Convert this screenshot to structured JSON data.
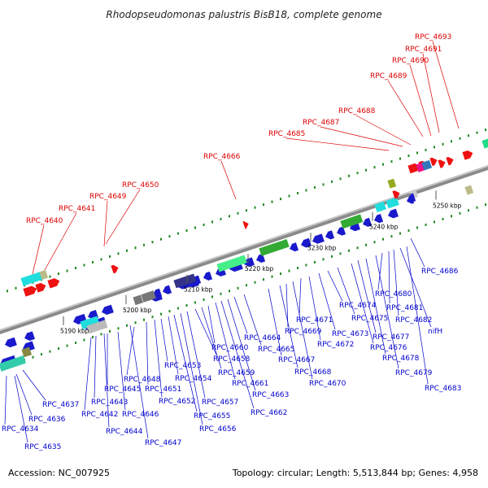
{
  "title": "Rhodopseudomonas palustris BisB18, complete genome",
  "footer": {
    "accession": "Accession: NC_007925",
    "stats": "Topology: circular; Length: 5,513,844 bp; Genes: 4,958"
  },
  "kbp_ticks": [
    "5190 kbp",
    "5200 kbp",
    "5210 kbp",
    "5220 kbp",
    "5230 kbp",
    "5240 kbp",
    "5250 kbp"
  ],
  "colors": {
    "forward_labels": "#dd0000",
    "reverse_labels": "#0000cc",
    "genome_line": "#888888",
    "tick_marks": "#228822"
  },
  "forward_labels": [
    "RPC_4640",
    "RPC_4641",
    "RPC_4649",
    "RPC_4650",
    "RPC_4666",
    "RPC_4685",
    "RPC_4687",
    "RPC_4688",
    "RPC_4689",
    "RPC_4690",
    "RPC_4691",
    "RPC_4693"
  ],
  "reverse_labels": [
    "RPC_4634",
    "RPC_4635",
    "RPC_4636",
    "RPC_4637",
    "RPC_4642",
    "RPC_4643",
    "RPC_4644",
    "RPC_4645",
    "RPC_4646",
    "RPC_4647",
    "RPC_4648",
    "RPC_4651",
    "RPC_4652",
    "RPC_4653",
    "RPC_4654",
    "RPC_4655",
    "RPC_4656",
    "RPC_4657",
    "RPC_4658",
    "RPC_4659",
    "RPC_4660",
    "RPC_4661",
    "RPC_4662",
    "RPC_4663",
    "RPC_4664",
    "RPC_4665",
    "RPC_4667",
    "RPC_4668",
    "RPC_4669",
    "RPC_4670",
    "RPC_4671",
    "RPC_4672",
    "RPC_4673",
    "RPC_4674",
    "RPC_4675",
    "RPC_4676",
    "RPC_4677",
    "RPC_4678",
    "RPC_4679",
    "RPC_4680",
    "RPC_4681",
    "RPC_4682",
    "nifH",
    "RPC_4683",
    "RPC_4686"
  ]
}
